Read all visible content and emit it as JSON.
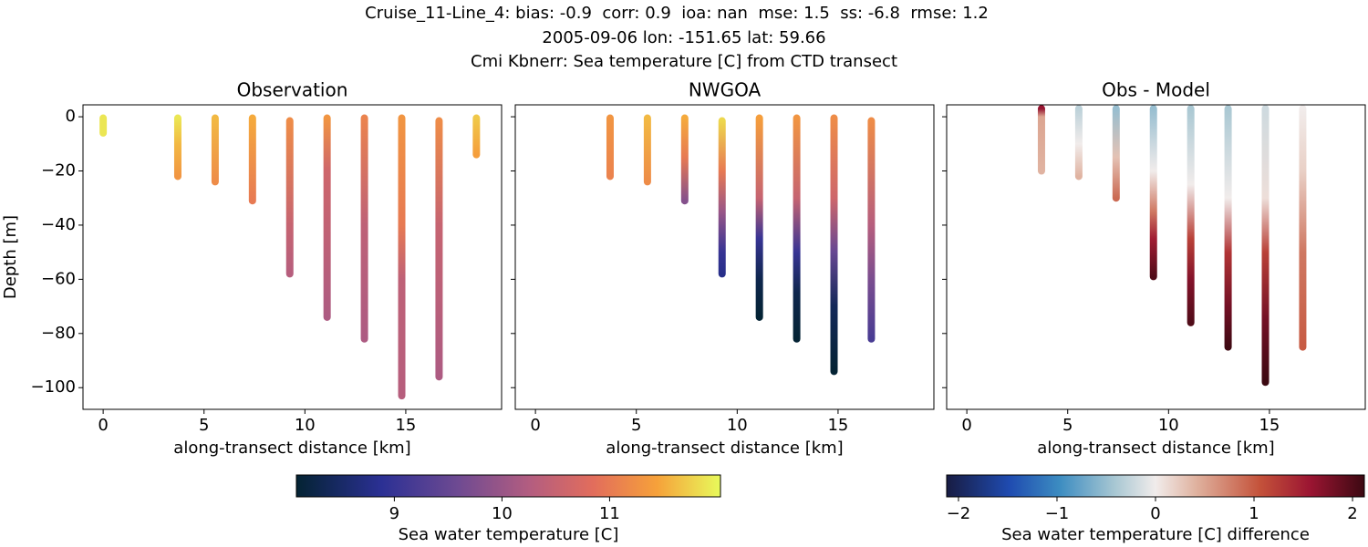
{
  "title": [
    "Cruise_11-Line_4: bias: -0.9  corr: 0.9  ioa: nan  mse: 1.5  ss: -6.8  rmse: 1.2",
    "2005-09-06 lon: -151.65 lat: 59.66",
    "Cmi Kbnerr: Sea temperature [C] from CTD transect"
  ],
  "chart_data": [
    {
      "type": "profile",
      "title": "Observation",
      "xlabel": "along-transect distance [km]",
      "ylabel": "Depth [m]",
      "xlim": [
        -1,
        19.75
      ],
      "ylim": [
        -108,
        4.4
      ],
      "xticks": [
        0,
        5,
        10,
        15
      ],
      "yticks": [
        {
          "value": -100,
          "label": "−100"
        },
        {
          "value": -80,
          "label": "−80"
        },
        {
          "value": -60,
          "label": "−60"
        },
        {
          "value": -40,
          "label": "−40"
        },
        {
          "value": -20,
          "label": "−20"
        },
        0
      ],
      "ytick_labels": true,
      "colormap": "thermal",
      "clim": [
        8.09,
        12.03
      ],
      "profiles": [
        {
          "x": 0,
          "depths": [
            -0.5,
            -6
          ],
          "values": [
            11.9,
            11.9
          ]
        },
        {
          "x": 3.7,
          "depths": [
            -0.5,
            -10,
            -22
          ],
          "values": [
            11.9,
            11.6,
            11.3
          ]
        },
        {
          "x": 5.55,
          "depths": [
            -0.5,
            -24
          ],
          "values": [
            11.6,
            11.2
          ]
        },
        {
          "x": 7.4,
          "depths": [
            -0.5,
            -31
          ],
          "values": [
            11.5,
            11.0
          ]
        },
        {
          "x": 9.25,
          "depths": [
            -1.5,
            -40,
            -58
          ],
          "values": [
            11.2,
            10.5,
            10.3
          ]
        },
        {
          "x": 11.1,
          "depths": [
            -0.5,
            -20,
            -74
          ],
          "values": [
            11.3,
            10.6,
            10.2
          ]
        },
        {
          "x": 12.95,
          "depths": [
            -0.5,
            -40,
            -82
          ],
          "values": [
            11.1,
            10.4,
            10.2
          ]
        },
        {
          "x": 14.8,
          "depths": [
            -0.5,
            -40,
            -60,
            -103
          ],
          "values": [
            11.3,
            11.0,
            10.4,
            10.3
          ]
        },
        {
          "x": 16.65,
          "depths": [
            -1.5,
            -40,
            -96
          ],
          "values": [
            11.2,
            10.5,
            10.2
          ]
        },
        {
          "x": 18.5,
          "depths": [
            -0.5,
            -14
          ],
          "values": [
            11.7,
            11.4
          ]
        }
      ]
    },
    {
      "type": "profile",
      "title": "NWGOA",
      "xlabel": "along-transect distance [km]",
      "xlim": [
        -1,
        19.75
      ],
      "ylim": [
        -108,
        4.4
      ],
      "xticks": [
        0,
        5,
        10,
        15
      ],
      "yticks": [
        -100,
        -80,
        -60,
        -40,
        -20,
        0
      ],
      "ytick_labels": false,
      "colormap": "thermal",
      "clim": [
        8.09,
        12.03
      ],
      "profiles": [
        {
          "x": 3.7,
          "depths": [
            -0.5,
            -22
          ],
          "values": [
            11.3,
            11.1
          ]
        },
        {
          "x": 5.55,
          "depths": [
            -0.5,
            -24
          ],
          "values": [
            11.6,
            11.2
          ]
        },
        {
          "x": 7.4,
          "depths": [
            -0.5,
            -15,
            -31
          ],
          "values": [
            11.5,
            11.0,
            9.8
          ]
        },
        {
          "x": 9.25,
          "depths": [
            -1.5,
            -20,
            -35,
            -50,
            -58
          ],
          "values": [
            11.8,
            11.0,
            10.0,
            9.0,
            8.8
          ]
        },
        {
          "x": 11.1,
          "depths": [
            -0.5,
            -30,
            -45,
            -60,
            -74
          ],
          "values": [
            11.4,
            10.5,
            9.0,
            8.3,
            8.1
          ]
        },
        {
          "x": 12.95,
          "depths": [
            -0.5,
            -30,
            -50,
            -65,
            -82
          ],
          "values": [
            11.3,
            10.5,
            9.0,
            8.3,
            8.1
          ]
        },
        {
          "x": 14.8,
          "depths": [
            -0.5,
            -30,
            -50,
            -70,
            -94
          ],
          "values": [
            11.2,
            10.6,
            9.5,
            8.4,
            8.1
          ]
        },
        {
          "x": 16.65,
          "depths": [
            -1.5,
            -40,
            -60,
            -82
          ],
          "values": [
            11.2,
            10.3,
            9.7,
            9.2
          ]
        }
      ]
    },
    {
      "type": "profile",
      "title": "Obs - Model",
      "xlabel": "along-transect distance [km]",
      "xlim": [
        -1,
        19.75
      ],
      "ylim": [
        -108,
        4.4
      ],
      "xticks": [
        0,
        5,
        10,
        15
      ],
      "yticks": [
        -100,
        -80,
        -60,
        -40,
        -20,
        0
      ],
      "ytick_labels": false,
      "colormap": "balance",
      "clim": [
        -2.12,
        2.12
      ],
      "profiles": [
        {
          "x": 3.7,
          "depths": [
            3,
            0,
            -20
          ],
          "values": [
            1.6,
            0.5,
            0.4
          ]
        },
        {
          "x": 5.55,
          "depths": [
            3,
            -10,
            -22
          ],
          "values": [
            -0.3,
            0.0,
            0.4
          ]
        },
        {
          "x": 7.4,
          "depths": [
            3,
            -15,
            -30
          ],
          "values": [
            -0.5,
            0.3,
            0.9
          ]
        },
        {
          "x": 9.25,
          "depths": [
            3,
            -20,
            -35,
            -45,
            -59
          ],
          "values": [
            -0.5,
            0,
            0.8,
            1.5,
            2.0
          ]
        },
        {
          "x": 11.1,
          "depths": [
            3,
            -25,
            -45,
            -60,
            -76
          ],
          "values": [
            -0.4,
            0,
            1.2,
            1.7,
            2.0
          ]
        },
        {
          "x": 12.95,
          "depths": [
            3,
            -30,
            -50,
            -70,
            -85
          ],
          "values": [
            -0.4,
            0,
            1.3,
            1.8,
            2.1
          ]
        },
        {
          "x": 14.8,
          "depths": [
            3,
            -30,
            -50,
            -75,
            -98
          ],
          "values": [
            -0.2,
            0.1,
            1.2,
            1.8,
            2.2
          ]
        },
        {
          "x": 16.65,
          "depths": [
            3,
            -20,
            -50,
            -85
          ],
          "values": [
            0,
            0.2,
            0.8,
            1.0
          ]
        }
      ]
    }
  ],
  "colorbars": [
    {
      "label": "Sea water temperature [C]",
      "colormap": "thermal",
      "lim": [
        8.09,
        12.03
      ],
      "ticks": [
        9,
        10,
        11
      ]
    },
    {
      "label": "Sea water temperature [C] difference",
      "colormap": "balance",
      "lim": [
        -2.12,
        2.12
      ],
      "ticks": [
        {
          "value": -2,
          "label": "−2"
        },
        {
          "value": -1,
          "label": "−1"
        },
        0,
        1,
        2
      ]
    }
  ]
}
